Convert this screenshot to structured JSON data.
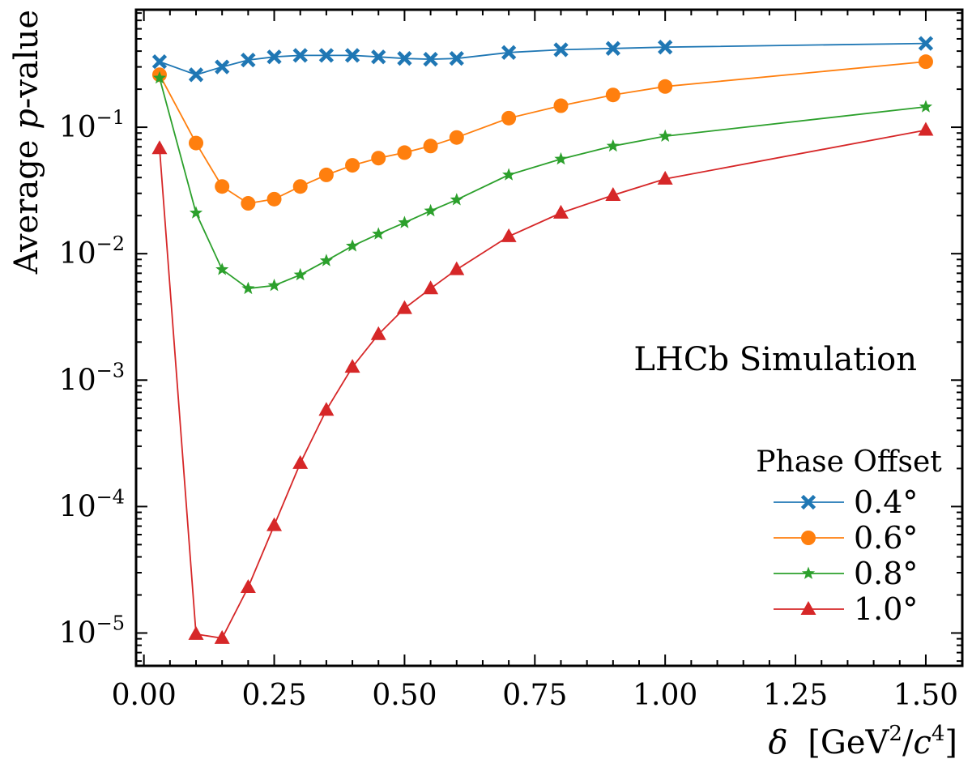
{
  "chart_data": {
    "type": "line",
    "title": "",
    "xlabel": {
      "symbol": "δ",
      "unit_prefix": "[GeV",
      "sup1": "2",
      "mid": "/",
      "c": "c",
      "sup2": "4",
      "close": "]"
    },
    "ylabel": {
      "prefix": "Average ",
      "italic": "p",
      "suffix": "-value"
    },
    "xlim": [
      -0.015,
      1.57
    ],
    "ylim": [
      5.5e-06,
      0.85
    ],
    "yscale": "log",
    "x_ticks": [
      "0.00",
      "0.25",
      "0.50",
      "0.75",
      "1.00",
      "1.25",
      "1.50"
    ],
    "y_ticks": [
      {
        "value": 0.1,
        "exp": "−1"
      },
      {
        "value": 0.01,
        "exp": "−2"
      },
      {
        "value": 0.001,
        "exp": "−3"
      },
      {
        "value": 0.0001,
        "exp": "−4"
      },
      {
        "value": 1e-05,
        "exp": "−5"
      }
    ],
    "annotation": "LHCb Simulation",
    "legend": {
      "title": "Phase Offset",
      "position": "lower right"
    },
    "series": [
      {
        "name": "0.4°",
        "color": "#1f77b4",
        "marker": "X",
        "x": [
          0.03,
          0.1,
          0.15,
          0.2,
          0.25,
          0.3,
          0.35,
          0.4,
          0.45,
          0.5,
          0.55,
          0.6,
          0.7,
          0.8,
          0.9,
          1.0,
          1.5
        ],
        "y": [
          0.33,
          0.26,
          0.3,
          0.34,
          0.36,
          0.37,
          0.37,
          0.37,
          0.36,
          0.35,
          0.345,
          0.35,
          0.39,
          0.41,
          0.42,
          0.43,
          0.46
        ]
      },
      {
        "name": "0.6°",
        "color": "#ff7f0e",
        "marker": "o",
        "x": [
          0.03,
          0.1,
          0.15,
          0.2,
          0.25,
          0.3,
          0.35,
          0.4,
          0.45,
          0.5,
          0.55,
          0.6,
          0.7,
          0.8,
          0.9,
          1.0,
          1.5
        ],
        "y": [
          0.26,
          0.075,
          0.034,
          0.025,
          0.027,
          0.034,
          0.042,
          0.05,
          0.057,
          0.063,
          0.071,
          0.083,
          0.118,
          0.148,
          0.18,
          0.21,
          0.33
        ]
      },
      {
        "name": "0.8°",
        "color": "#2ca02c",
        "marker": "*",
        "x": [
          0.03,
          0.1,
          0.15,
          0.2,
          0.25,
          0.3,
          0.35,
          0.4,
          0.45,
          0.5,
          0.55,
          0.6,
          0.7,
          0.8,
          0.9,
          1.0,
          1.5
        ],
        "y": [
          0.245,
          0.021,
          0.0075,
          0.0053,
          0.0056,
          0.0068,
          0.0088,
          0.0115,
          0.0143,
          0.0176,
          0.0218,
          0.0267,
          0.042,
          0.056,
          0.071,
          0.085,
          0.145
        ]
      },
      {
        "name": "1.0°",
        "color": "#d62728",
        "marker": "^",
        "x": [
          0.03,
          0.1,
          0.15,
          0.2,
          0.25,
          0.3,
          0.35,
          0.4,
          0.45,
          0.5,
          0.55,
          0.6,
          0.7,
          0.8,
          0.9,
          1.0,
          1.5
        ],
        "y": [
          0.068,
          9.8e-06,
          9.1e-06,
          2.3e-05,
          7.1e-05,
          0.00022,
          0.00058,
          0.00127,
          0.0023,
          0.0037,
          0.0053,
          0.0075,
          0.0137,
          0.021,
          0.029,
          0.039,
          0.095
        ]
      }
    ]
  }
}
